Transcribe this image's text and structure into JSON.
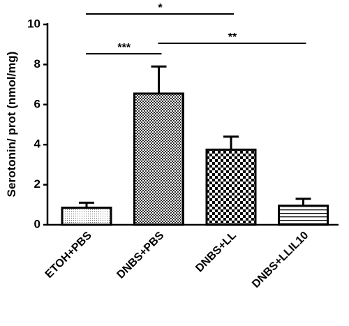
{
  "chart_data": {
    "type": "bar",
    "y_label": "Serotonin/ prot (nmol/mg)",
    "categories": [
      "ETOH+PBS",
      "DNBS+PBS",
      "DNBS+LL",
      "DNBS+LLIL10"
    ],
    "values": [
      0.85,
      6.55,
      3.75,
      0.95
    ],
    "errors": [
      0.25,
      1.35,
      0.65,
      0.35
    ],
    "patterns": [
      "dots",
      "crosshatch",
      "checker",
      "hlines"
    ],
    "color": "#000000",
    "ylim": [
      0,
      10
    ],
    "yticks": [
      0,
      2,
      4,
      6,
      8,
      10
    ],
    "annotations": [
      {
        "label": "***",
        "from": 0,
        "to": 1
      },
      {
        "label": "**",
        "from": 1,
        "to": 3
      },
      {
        "label": "*",
        "from": 0,
        "to": 2
      }
    ]
  }
}
